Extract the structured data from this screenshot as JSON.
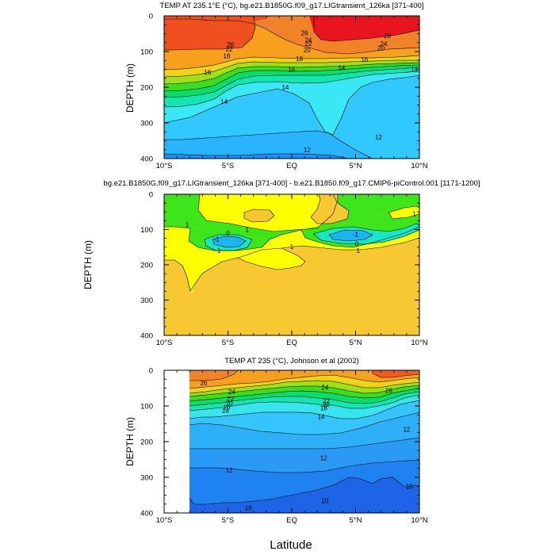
{
  "chart_data": {
    "type": "contour",
    "x_label": "Latitude",
    "x_ticks": [
      "10°S",
      "5°S",
      "EQ",
      "5°N",
      "10°N"
    ],
    "x_tick_values": [
      -10,
      -5,
      0,
      5,
      10
    ],
    "y_ticks": [
      "0",
      "100",
      "200",
      "300",
      "400"
    ],
    "y_tick_values": [
      0,
      100,
      200,
      300,
      400
    ],
    "panels": [
      {
        "id": "model",
        "title": "TEMP AT 235.1°E (°C), bg.e21.B1850G.f09_g17.LIGtransient_126ka [371-400]",
        "ylabel": "DEPTH (m)",
        "xlim": [
          -10,
          10
        ],
        "ylim": [
          400,
          0
        ],
        "levels_shown": [
          10,
          12,
          14,
          16,
          18,
          20,
          22,
          24,
          26,
          28
        ],
        "contour_labels": [
          {
            "text": "28",
            "x": 7.5,
            "y": 55
          },
          {
            "text": "26",
            "x": 1.0,
            "y": 48
          },
          {
            "text": "26",
            "x": -4.8,
            "y": 80
          },
          {
            "text": "24",
            "x": 1.3,
            "y": 68
          },
          {
            "text": "24",
            "x": 7.2,
            "y": 78
          },
          {
            "text": "22",
            "x": 1.3,
            "y": 78
          },
          {
            "text": "22",
            "x": -4.9,
            "y": 93
          },
          {
            "text": "20",
            "x": 1.2,
            "y": 95
          },
          {
            "text": "20",
            "x": 7.0,
            "y": 90
          },
          {
            "text": "18",
            "x": 0.6,
            "y": 120
          },
          {
            "text": "18",
            "x": -5.1,
            "y": 112
          },
          {
            "text": "16",
            "x": 5.7,
            "y": 122
          },
          {
            "text": "16",
            "x": -6.6,
            "y": 158
          },
          {
            "text": "16",
            "x": 0.0,
            "y": 150
          },
          {
            "text": "14",
            "x": 3.9,
            "y": 145
          },
          {
            "text": "14",
            "x": -5.3,
            "y": 240
          },
          {
            "text": "14",
            "x": -0.5,
            "y": 200
          },
          {
            "text": "14",
            "x": 9.6,
            "y": 150
          },
          {
            "text": "12",
            "x": 6.8,
            "y": 340
          },
          {
            "text": "12",
            "x": 1.2,
            "y": 375
          }
        ]
      },
      {
        "id": "difference",
        "title": "bg.e21.B1850G.f09_g17.LIGtransient_126ka [371-400] - b.e21.B1850.f09_g17.CMIP6-piControl.001 [1171-1200]",
        "ylabel": "DEPTH (m)",
        "xlim": [
          -10,
          10
        ],
        "ylim": [
          400,
          0
        ],
        "levels_shown": [
          -1,
          0,
          1,
          2
        ],
        "contour_labels": [
          {
            "text": "1",
            "x": -8.2,
            "y": 85
          },
          {
            "text": "0",
            "x": -5.0,
            "y": 110
          },
          {
            "text": "1",
            "x": -3.5,
            "y": 100
          },
          {
            "text": "1",
            "x": -5.7,
            "y": 160
          },
          {
            "text": "1",
            "x": 0.0,
            "y": 148
          },
          {
            "text": "0",
            "x": 5.1,
            "y": 140
          },
          {
            "text": "1",
            "x": 5.2,
            "y": 160
          },
          {
            "text": "1",
            "x": 9.6,
            "y": 55
          },
          {
            "text": "-1",
            "x": -5.9,
            "y": 127
          },
          {
            "text": "-1",
            "x": 5.0,
            "y": 113
          }
        ]
      },
      {
        "id": "observations",
        "title": "TEMP AT 235 (°C), Johnson et al (2002)",
        "ylabel": "DEPTH (m)",
        "xlim": [
          -10,
          10
        ],
        "ylim": [
          400,
          0
        ],
        "data_xrange": [
          -8,
          10
        ],
        "levels_shown": [
          10,
          12,
          14,
          16,
          18,
          20,
          22,
          24,
          26
        ],
        "contour_labels": [
          {
            "text": "26",
            "x": -6.9,
            "y": 35
          },
          {
            "text": "24",
            "x": -4.7,
            "y": 60
          },
          {
            "text": "24",
            "x": 2.6,
            "y": 48
          },
          {
            "text": "26",
            "x": 7.6,
            "y": 57
          },
          {
            "text": "22",
            "x": -4.8,
            "y": 80
          },
          {
            "text": "20",
            "x": -4.9,
            "y": 93
          },
          {
            "text": "22",
            "x": 2.7,
            "y": 85
          },
          {
            "text": "20",
            "x": 2.7,
            "y": 95
          },
          {
            "text": "18",
            "x": 2.5,
            "y": 106
          },
          {
            "text": "16",
            "x": -5.1,
            "y": 103
          },
          {
            "text": "14",
            "x": -5.2,
            "y": 113
          },
          {
            "text": "14",
            "x": 2.3,
            "y": 130
          },
          {
            "text": "12",
            "x": 9.0,
            "y": 165
          },
          {
            "text": "12",
            "x": 2.5,
            "y": 245
          },
          {
            "text": "12",
            "x": -4.9,
            "y": 280
          },
          {
            "text": "10",
            "x": 2.6,
            "y": 365
          },
          {
            "text": "10",
            "x": -3.4,
            "y": 385
          },
          {
            "text": "10",
            "x": 9.2,
            "y": 325
          }
        ]
      }
    ]
  }
}
